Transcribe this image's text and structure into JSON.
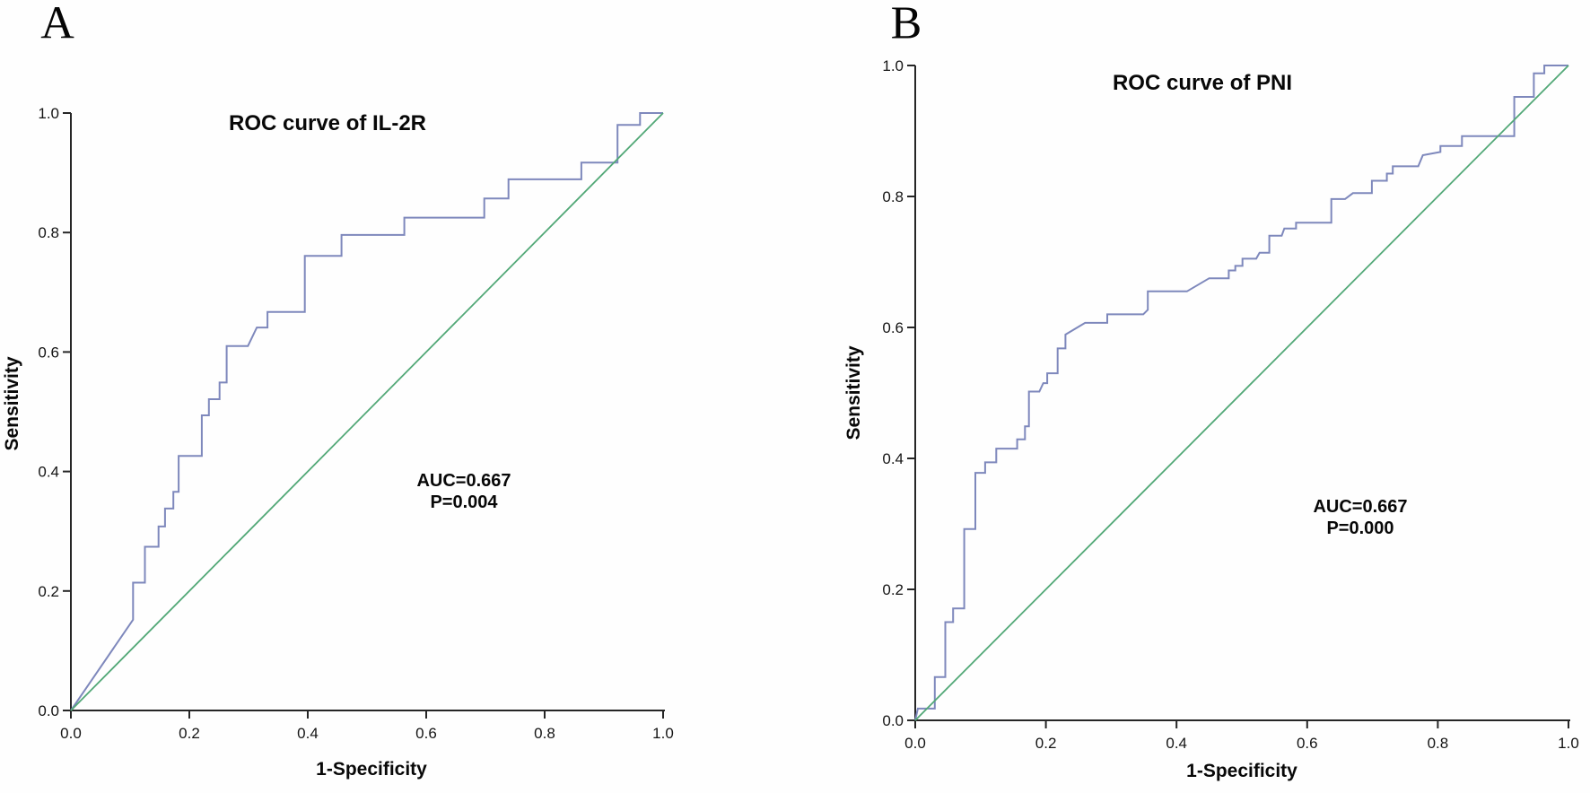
{
  "figure": {
    "background_color": "#fefefe",
    "axis_color": "#262626",
    "text_color": "#080808",
    "roc_color": "#7e88bc",
    "reference_color": "#52a877"
  },
  "chart_data": [
    {
      "type": "line",
      "panel_label": "A",
      "title": "ROC curve of IL-2R",
      "xlabel": "1-Specificity",
      "ylabel": "Sensitivity",
      "xlim": [
        0.0,
        1.0
      ],
      "ylim": [
        0.0,
        1.0
      ],
      "x_ticks": [
        "0.0",
        "0.2",
        "0.4",
        "0.6",
        "0.8",
        "1.0"
      ],
      "y_ticks": [
        "0.0",
        "0.2",
        "0.4",
        "0.6",
        "0.8",
        "1.0"
      ],
      "grid": false,
      "legend": "none",
      "auc": 0.667,
      "p_value": 0.004,
      "annotations": [
        "AUC=0.667",
        "P=0.004"
      ],
      "series": [
        {
          "name": "roc-curve-il2r",
          "color": "#7e88bc",
          "width": 2,
          "points": [
            [
              0,
              0
            ],
            [
              0.105,
              0.152
            ],
            [
              0.105,
              0.214
            ],
            [
              0.125,
              0.214
            ],
            [
              0.125,
              0.274
            ],
            [
              0.148,
              0.274
            ],
            [
              0.148,
              0.308
            ],
            [
              0.159,
              0.308
            ],
            [
              0.159,
              0.338
            ],
            [
              0.173,
              0.338
            ],
            [
              0.173,
              0.366
            ],
            [
              0.182,
              0.366
            ],
            [
              0.182,
              0.426
            ],
            [
              0.221,
              0.426
            ],
            [
              0.221,
              0.494
            ],
            [
              0.233,
              0.494
            ],
            [
              0.233,
              0.521
            ],
            [
              0.251,
              0.521
            ],
            [
              0.251,
              0.549
            ],
            [
              0.263,
              0.549
            ],
            [
              0.263,
              0.61
            ],
            [
              0.299,
              0.61
            ],
            [
              0.314,
              0.641
            ],
            [
              0.332,
              0.641
            ],
            [
              0.332,
              0.667
            ],
            [
              0.395,
              0.667
            ],
            [
              0.395,
              0.761
            ],
            [
              0.457,
              0.761
            ],
            [
              0.457,
              0.796
            ],
            [
              0.563,
              0.796
            ],
            [
              0.563,
              0.825
            ],
            [
              0.698,
              0.825
            ],
            [
              0.698,
              0.857
            ],
            [
              0.739,
              0.857
            ],
            [
              0.739,
              0.889
            ],
            [
              0.862,
              0.889
            ],
            [
              0.862,
              0.917
            ],
            [
              0.923,
              0.917
            ],
            [
              0.923,
              0.98
            ],
            [
              0.961,
              0.98
            ],
            [
              0.961,
              1
            ],
            [
              1,
              1
            ]
          ]
        },
        {
          "name": "reference-line",
          "color": "#52a877",
          "width": 1.8,
          "points": [
            [
              0,
              0
            ],
            [
              1,
              1
            ]
          ]
        }
      ]
    },
    {
      "type": "line",
      "panel_label": "B",
      "title": "ROC curve of PNI",
      "xlabel": "1-Specificity",
      "ylabel": "Sensitivity",
      "xlim": [
        0.0,
        1.0
      ],
      "ylim": [
        0.0,
        1.0
      ],
      "x_ticks": [
        "0.0",
        "0.2",
        "0.4",
        "0.6",
        "0.8",
        "1.0"
      ],
      "y_ticks": [
        "0.0",
        "0.2",
        "0.4",
        "0.6",
        "0.8",
        "1.0"
      ],
      "grid": false,
      "legend": "none",
      "auc": 0.667,
      "p_value": 0.0,
      "annotations": [
        "AUC=0.667",
        "P=0.000"
      ],
      "series": [
        {
          "name": "roc-curve-pni",
          "color": "#7e88bc",
          "width": 2,
          "points": [
            [
              0,
              0
            ],
            [
              0.004,
              0.018
            ],
            [
              0.03,
              0.018
            ],
            [
              0.03,
              0.066
            ],
            [
              0.046,
              0.066
            ],
            [
              0.046,
              0.15
            ],
            [
              0.058,
              0.15
            ],
            [
              0.058,
              0.171
            ],
            [
              0.075,
              0.171
            ],
            [
              0.075,
              0.292
            ],
            [
              0.092,
              0.292
            ],
            [
              0.092,
              0.378
            ],
            [
              0.107,
              0.378
            ],
            [
              0.107,
              0.394
            ],
            [
              0.124,
              0.394
            ],
            [
              0.124,
              0.415
            ],
            [
              0.156,
              0.415
            ],
            [
              0.156,
              0.429
            ],
            [
              0.168,
              0.429
            ],
            [
              0.168,
              0.449
            ],
            [
              0.174,
              0.449
            ],
            [
              0.174,
              0.502
            ],
            [
              0.19,
              0.502
            ],
            [
              0.196,
              0.515
            ],
            [
              0.202,
              0.515
            ],
            [
              0.202,
              0.53
            ],
            [
              0.218,
              0.53
            ],
            [
              0.218,
              0.568
            ],
            [
              0.23,
              0.568
            ],
            [
              0.23,
              0.589
            ],
            [
              0.26,
              0.607
            ],
            [
              0.294,
              0.607
            ],
            [
              0.294,
              0.62
            ],
            [
              0.349,
              0.62
            ],
            [
              0.356,
              0.627
            ],
            [
              0.356,
              0.655
            ],
            [
              0.416,
              0.655
            ],
            [
              0.45,
              0.675
            ],
            [
              0.48,
              0.675
            ],
            [
              0.48,
              0.687
            ],
            [
              0.49,
              0.687
            ],
            [
              0.49,
              0.694
            ],
            [
              0.501,
              0.694
            ],
            [
              0.501,
              0.705
            ],
            [
              0.522,
              0.705
            ],
            [
              0.527,
              0.714
            ],
            [
              0.542,
              0.714
            ],
            [
              0.542,
              0.74
            ],
            [
              0.561,
              0.74
            ],
            [
              0.565,
              0.751
            ],
            [
              0.583,
              0.751
            ],
            [
              0.583,
              0.76
            ],
            [
              0.637,
              0.76
            ],
            [
              0.637,
              0.796
            ],
            [
              0.658,
              0.796
            ],
            [
              0.67,
              0.805
            ],
            [
              0.699,
              0.805
            ],
            [
              0.699,
              0.824
            ],
            [
              0.722,
              0.824
            ],
            [
              0.722,
              0.835
            ],
            [
              0.731,
              0.835
            ],
            [
              0.731,
              0.846
            ],
            [
              0.77,
              0.846
            ],
            [
              0.777,
              0.863
            ],
            [
              0.804,
              0.868
            ],
            [
              0.804,
              0.877
            ],
            [
              0.837,
              0.877
            ],
            [
              0.837,
              0.892
            ],
            [
              0.917,
              0.892
            ],
            [
              0.917,
              0.952
            ],
            [
              0.947,
              0.952
            ],
            [
              0.947,
              0.988
            ],
            [
              0.963,
              0.988
            ],
            [
              0.963,
              1
            ],
            [
              1,
              1
            ]
          ]
        },
        {
          "name": "reference-line",
          "color": "#52a877",
          "width": 1.8,
          "points": [
            [
              0,
              0
            ],
            [
              1,
              1
            ]
          ]
        }
      ]
    }
  ]
}
